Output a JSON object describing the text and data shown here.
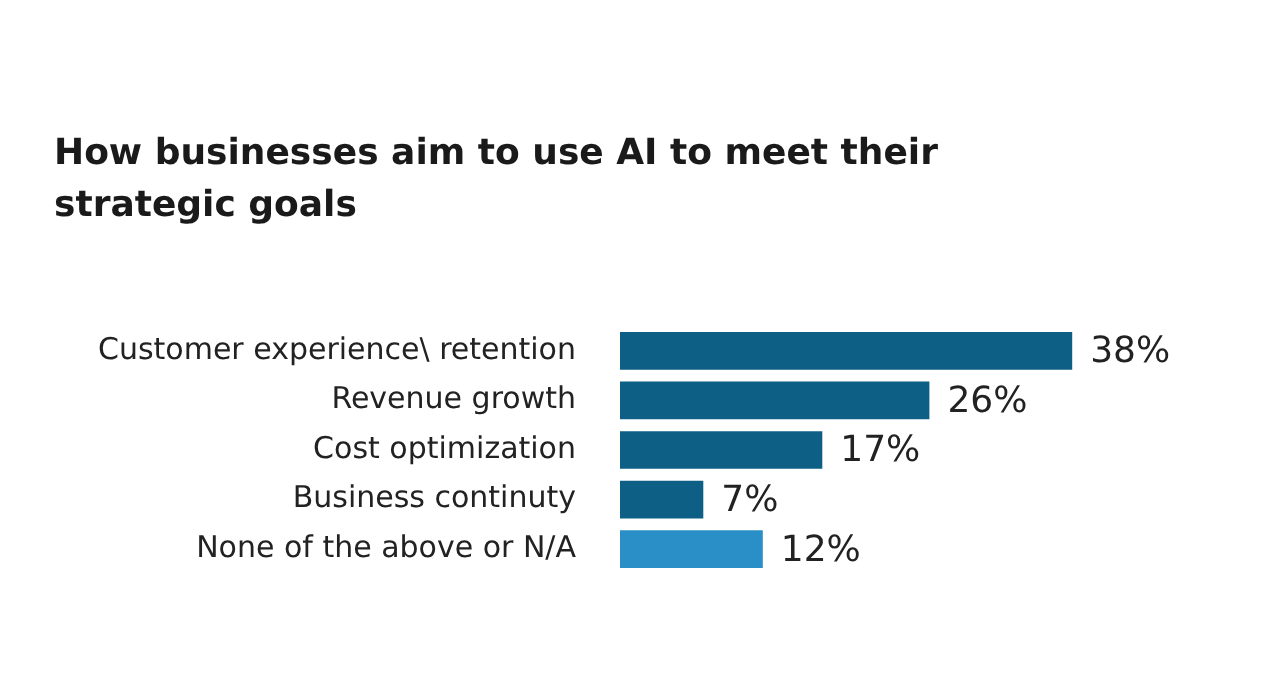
{
  "chart_data": {
    "type": "bar",
    "orientation": "horizontal",
    "title": "How businesses aim to use AI to meet their strategic goals",
    "categories": [
      "Customer experience\\ retention",
      "Revenue growth",
      "Cost optimization",
      "Business continuty",
      "None of the above or N/A"
    ],
    "values": [
      38,
      26,
      17,
      7,
      12
    ],
    "colors": [
      "#0e5f86",
      "#0e5f86",
      "#0e5f86",
      "#0e5f86",
      "#2a8fc6"
    ],
    "value_labels": [
      "38%",
      "26%",
      "17%",
      "7%",
      "12%"
    ],
    "legend": false,
    "tick_labels": "y"
  }
}
